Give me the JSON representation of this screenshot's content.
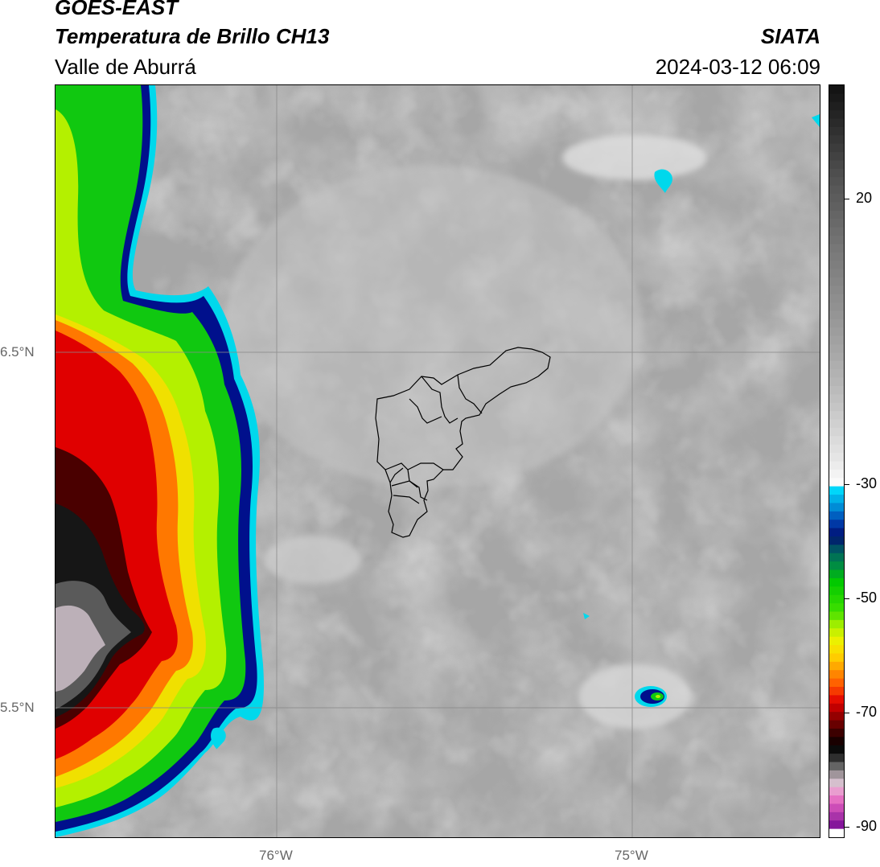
{
  "header": {
    "satellite": "GOES-EAST",
    "product": "Temperatura de Brillo CH13",
    "region": "Valle de Aburrá",
    "agency": "SIATA",
    "datetime": "2024-03-12 06:09"
  },
  "map": {
    "lat_labels": [
      "6.5°N",
      "5.5°N"
    ],
    "lon_labels": [
      "76°W",
      "75°W"
    ],
    "colors": {
      "background_gray": "#a8a8a8",
      "cyan": "#00d8ec",
      "navy": "#00108c",
      "green": "#10c810",
      "yellow_green": "#b4f000",
      "yellow": "#f0e000",
      "orange": "#ff7800",
      "red": "#e00000",
      "dark_red": "#4a0000",
      "black": "#101010",
      "pale_gray": "#bcb0b8"
    }
  },
  "colorbar": {
    "ticks": [
      "20",
      "-30",
      "-50",
      "-70",
      "-90"
    ],
    "tick_values": [
      20,
      -30,
      -50,
      -70,
      -90
    ],
    "range": [
      -92,
      40
    ],
    "unit": ""
  }
}
